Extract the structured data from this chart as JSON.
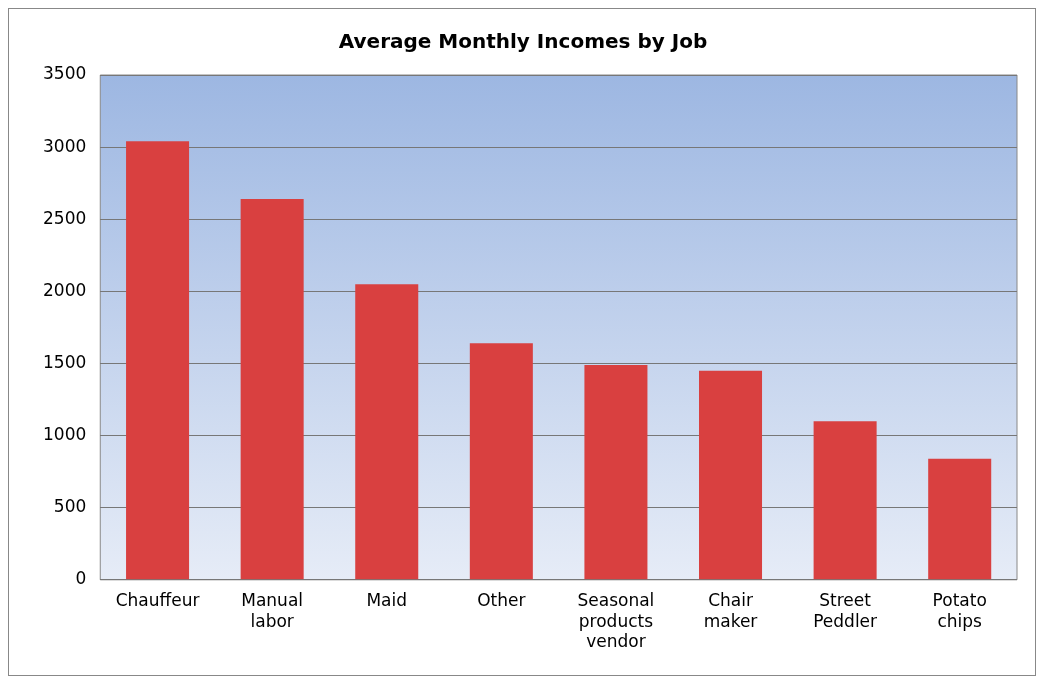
{
  "chart_data": {
    "type": "bar",
    "title": "Average Monthly Incomes by Job",
    "categories": [
      "Chauffeur",
      "Manual labor",
      "Maid",
      "Other",
      "Seasonal products vendor",
      "Chair maker",
      "Street Peddler",
      "Potato chips"
    ],
    "values": [
      3040,
      2640,
      2050,
      1640,
      1490,
      1450,
      1100,
      840
    ],
    "color": "#d94040",
    "ylim": [
      0,
      3500
    ],
    "yticks": [
      0,
      500,
      1000,
      1500,
      2000,
      2500,
      3000,
      3500
    ],
    "grid": "y",
    "legend": false
  }
}
